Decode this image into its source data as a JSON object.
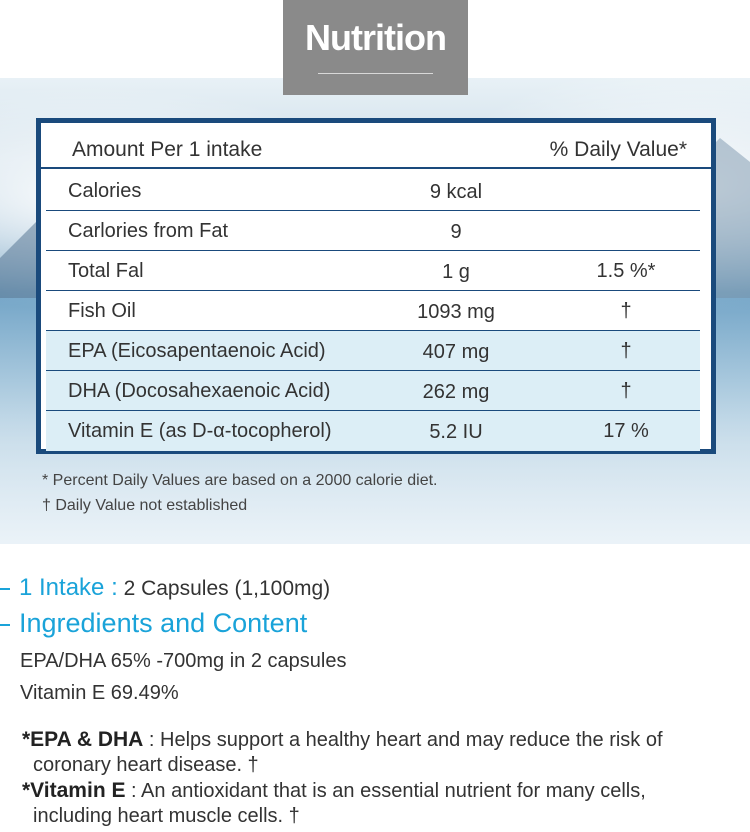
{
  "header": {
    "title": "Nutrition"
  },
  "table": {
    "amount_label": "Amount Per 1 intake",
    "daily_value_label": "% Daily Value*",
    "rows": [
      {
        "name": "Calories",
        "amount": "9 kcal",
        "dv": ""
      },
      {
        "name": "Carlories from Fat",
        "amount": "9",
        "dv": ""
      },
      {
        "name": "Total Fal",
        "amount": "1 g",
        "dv": "1.5 %*"
      },
      {
        "name": "Fish Oil",
        "amount": "1093 mg",
        "dv": "†"
      },
      {
        "name": "EPA (Eicosapentaenoic Acid)",
        "amount": "407 mg",
        "dv": "†"
      },
      {
        "name": "DHA (Docosahexaenoic Acid)",
        "amount": "262 mg",
        "dv": "†"
      },
      {
        "name": "Vitamin E (as D-α-tocopherol)",
        "amount": "5.2 IU",
        "dv": "17 %"
      }
    ]
  },
  "footnotes": {
    "percent": "*  Percent Daily Values are based on a 2000 calorie diet.",
    "dagger": "†  Daily Value not established"
  },
  "intake": {
    "label": "1 Intake :",
    "value": " 2 Capsules (1,100mg)"
  },
  "ingredients": {
    "heading": "Ingredients and Content",
    "lines": [
      "EPA/DHA 65% -700mg in 2 capsules",
      "Vitamin E 69.49%"
    ]
  },
  "notes": {
    "epa_term": "*EPA & DHA",
    "epa_text": " : Helps support a healthy heart and may reduce the risk of",
    "epa_cont": "coronary heart disease. †",
    "vite_term": "*Vitamin E",
    "vite_text": " : An antioxidant that is an essential nutrient for many cells,",
    "vite_cont": "including heart muscle cells. †"
  },
  "colors": {
    "accent": "#1aa3d9",
    "table_border": "#1a4a7c",
    "title_bg": "#8a8a8a",
    "row_tint": "#dceef6"
  }
}
